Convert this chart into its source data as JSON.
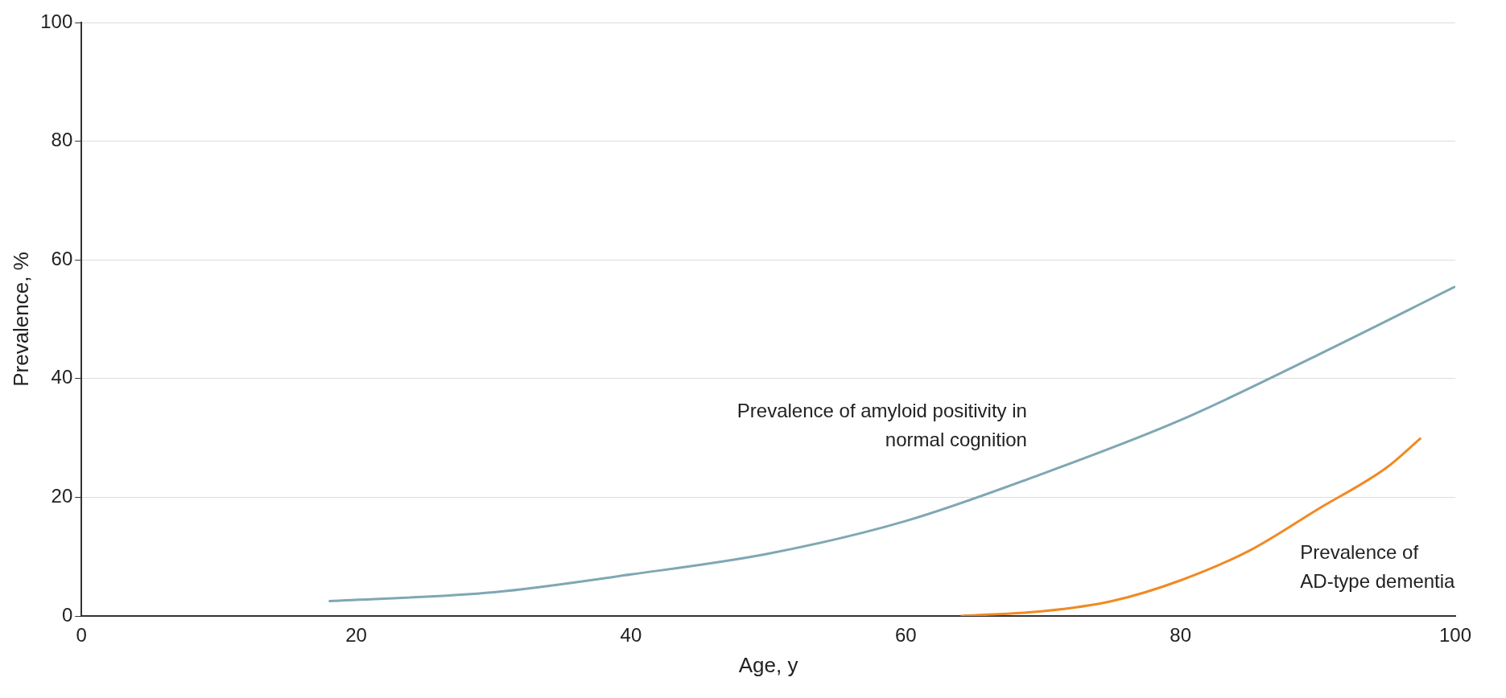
{
  "chart_data": {
    "type": "line",
    "xlabel": "Age, y",
    "ylabel": "Prevalence, %",
    "xlim": [
      0,
      100
    ],
    "xticks": [
      0,
      20,
      40,
      60,
      80,
      100
    ],
    "ylim": [
      0,
      100
    ],
    "yticks": [
      0,
      20,
      40,
      60,
      80,
      100
    ],
    "grid": "y",
    "legend": false,
    "marker": "none",
    "line_style": "solid",
    "series": [
      {
        "name": "Prevalence of amyloid positivity in normal cognition",
        "color": "#7fa7b4",
        "x": [
          18,
          30,
          40,
          50,
          60,
          70,
          80,
          90,
          100
        ],
        "values": [
          2.5,
          4,
          7,
          10.5,
          16,
          24,
          33,
          44,
          55.5
        ]
      },
      {
        "name": "Prevalence of AD-type dementia",
        "color": "#f08a24",
        "x": [
          64,
          70,
          75,
          80,
          85,
          90,
          95,
          97.5
        ],
        "values": [
          0,
          0.8,
          2.5,
          6,
          11,
          18,
          25,
          30
        ]
      }
    ]
  }
}
